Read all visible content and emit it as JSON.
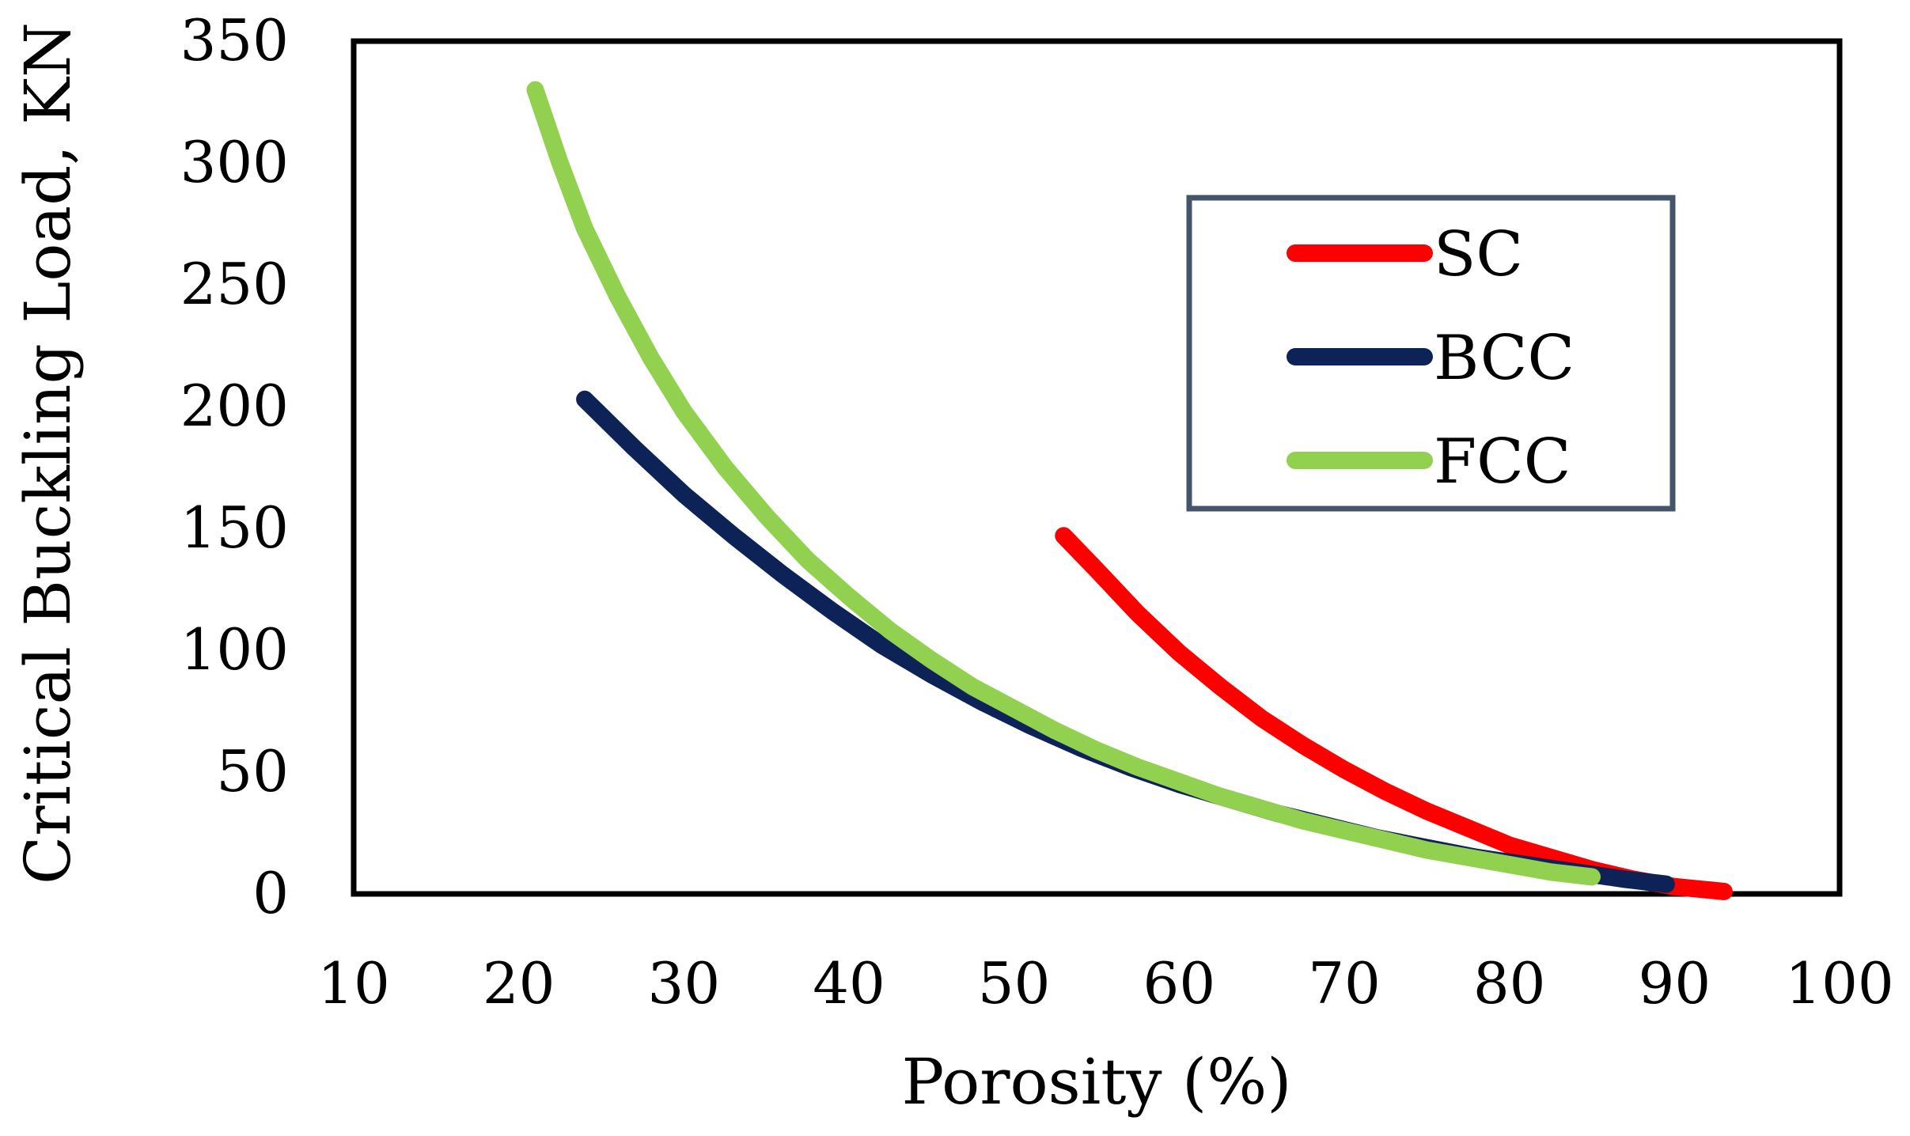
{
  "chart_data": {
    "type": "line",
    "title": "",
    "xlabel": "Porosity (%)",
    "ylabel": "Critical Buckling Load, KN",
    "xlim": [
      10,
      100
    ],
    "ylim": [
      0,
      350
    ],
    "xticks": [
      "10",
      "20",
      "30",
      "40",
      "50",
      "60",
      "70",
      "80",
      "90",
      "100"
    ],
    "yticks": [
      "0",
      "50",
      "100",
      "150",
      "200",
      "250",
      "300",
      "350"
    ],
    "grid": false,
    "legend_position": "top-right",
    "series": [
      {
        "name": "SC",
        "color": "#ff0000",
        "x": [
          53,
          55,
          57.5,
          60,
          62.5,
          65,
          67.5,
          70,
          72.5,
          75,
          77.5,
          80,
          82.5,
          85,
          87.5,
          90,
          93
        ],
        "y": [
          147,
          133,
          115,
          99,
          85,
          72,
          61,
          51,
          42,
          34,
          27,
          20,
          15,
          10,
          6,
          3,
          1
        ]
      },
      {
        "name": "BCC",
        "color": "#0d2257",
        "x": [
          24,
          27,
          30,
          33,
          36,
          39,
          42,
          45,
          48,
          51,
          54,
          57,
          60,
          63,
          66,
          69,
          72,
          75,
          78,
          81,
          84,
          87,
          89.5
        ],
        "y": [
          203,
          183,
          164,
          147,
          131,
          116,
          102,
          90,
          79,
          69,
          60,
          52,
          45,
          39,
          33,
          28,
          23,
          19,
          15,
          12,
          9,
          6,
          4
        ]
      },
      {
        "name": "FCC",
        "color": "#92d050",
        "x": [
          21,
          22.5,
          24,
          26,
          28,
          30,
          32.5,
          35,
          37.5,
          40,
          42.5,
          45,
          47.5,
          50,
          52.5,
          55,
          57.5,
          60,
          62.5,
          65,
          67.5,
          70,
          72.5,
          75,
          77.5,
          80,
          82.5,
          85
        ],
        "y": [
          330,
          300,
          273,
          245,
          220,
          198,
          175,
          155,
          137,
          122,
          108,
          96,
          85,
          76,
          67,
          59,
          52,
          46,
          40,
          35,
          30,
          26,
          22,
          18,
          15,
          12,
          9,
          7
        ]
      }
    ]
  }
}
